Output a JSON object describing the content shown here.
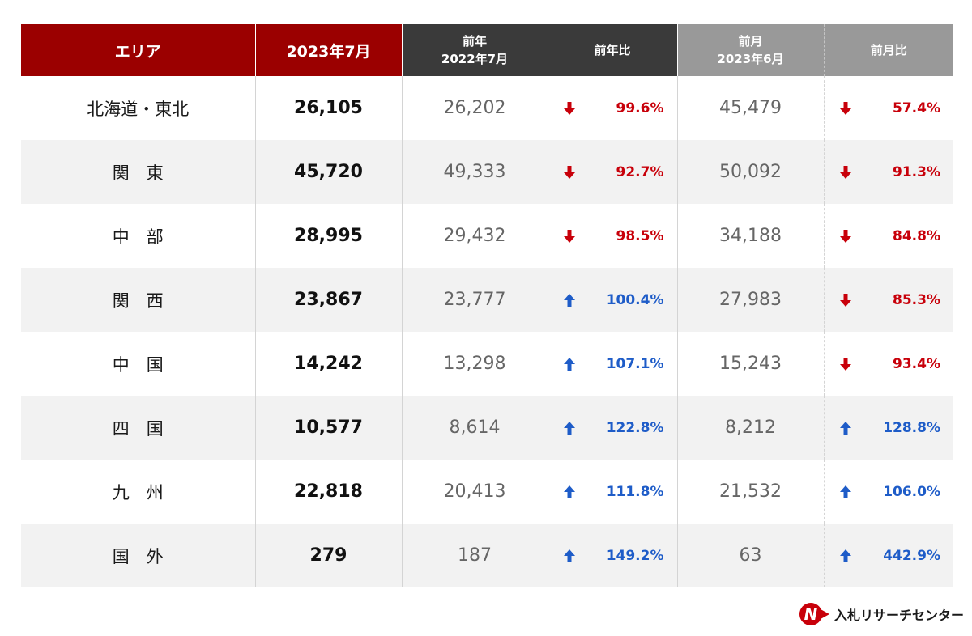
{
  "chart_data": {
    "type": "table",
    "headers": {
      "area": "エリア",
      "current": "2023年7月",
      "prev_year_l1": "前年",
      "prev_year_l2": "2022年7月",
      "yoy": "前年比",
      "prev_month_l1": "前月",
      "prev_month_l2": "2023年6月",
      "mom": "前月比"
    },
    "rows": [
      {
        "area": "北海道・東北",
        "current": "26,105",
        "prev_year": "26,202",
        "yoy": "99.6%",
        "yoy_dir": "down",
        "prev_month": "45,479",
        "mom": "57.4%",
        "mom_dir": "down"
      },
      {
        "area": "関　東",
        "current": "45,720",
        "prev_year": "49,333",
        "yoy": "92.7%",
        "yoy_dir": "down",
        "prev_month": "50,092",
        "mom": "91.3%",
        "mom_dir": "down"
      },
      {
        "area": "中　部",
        "current": "28,995",
        "prev_year": "29,432",
        "yoy": "98.5%",
        "yoy_dir": "down",
        "prev_month": "34,188",
        "mom": "84.8%",
        "mom_dir": "down"
      },
      {
        "area": "関　西",
        "current": "23,867",
        "prev_year": "23,777",
        "yoy": "100.4%",
        "yoy_dir": "up",
        "prev_month": "27,983",
        "mom": "85.3%",
        "mom_dir": "down"
      },
      {
        "area": "中　国",
        "current": "14,242",
        "prev_year": "13,298",
        "yoy": "107.1%",
        "yoy_dir": "up",
        "prev_month": "15,243",
        "mom": "93.4%",
        "mom_dir": "down"
      },
      {
        "area": "四　国",
        "current": "10,577",
        "prev_year": "8,614",
        "yoy": "122.8%",
        "yoy_dir": "up",
        "prev_month": "8,212",
        "mom": "128.8%",
        "mom_dir": "up"
      },
      {
        "area": "九　州",
        "current": "22,818",
        "prev_year": "20,413",
        "yoy": "111.8%",
        "yoy_dir": "up",
        "prev_month": "21,532",
        "mom": "106.0%",
        "mom_dir": "up"
      },
      {
        "area": "国　外",
        "current": "279",
        "prev_year": "187",
        "yoy": "149.2%",
        "yoy_dir": "up",
        "prev_month": "63",
        "mom": "442.9%",
        "mom_dir": "up"
      }
    ]
  },
  "colors": {
    "header_red": "#9b0000",
    "header_dark": "#3a3a3a",
    "header_gray": "#999999",
    "down": "#c8000a",
    "up": "#1e5cc8",
    "row_shade": "#f2f2f2"
  },
  "logo": {
    "text": "入札リサーチセンター",
    "mark_letter": "N"
  }
}
